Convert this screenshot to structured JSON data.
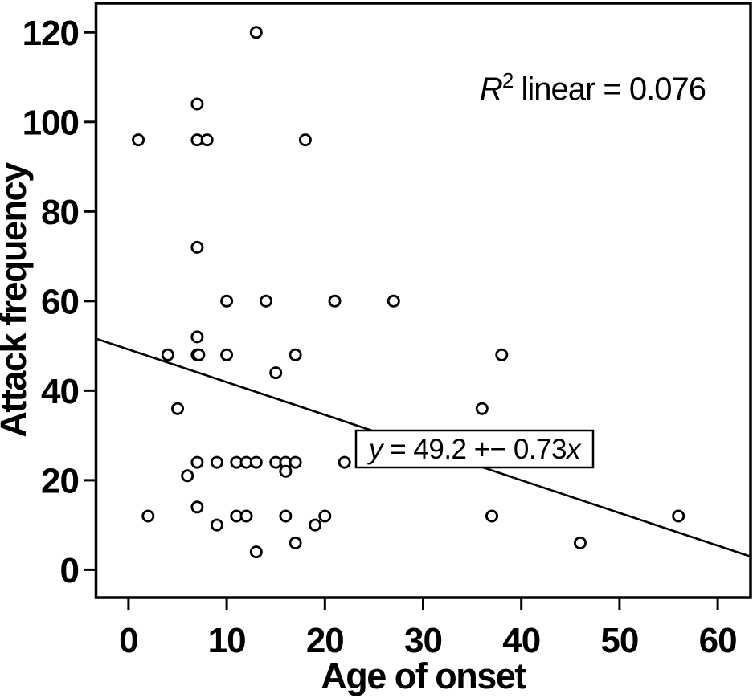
{
  "figure": {
    "background_color": "#ffffff",
    "ink_color": "#000000"
  },
  "chart_data": {
    "type": "scatter",
    "title": "",
    "xlabel": "Age of onset",
    "ylabel": "Attack frequency",
    "x_ticks": [
      0,
      10,
      20,
      30,
      40,
      50,
      60
    ],
    "y_ticks": [
      0,
      20,
      40,
      60,
      80,
      100,
      120
    ],
    "xlim": [
      -3.3,
      63.3
    ],
    "ylim": [
      -6.2,
      126.5
    ],
    "grid": false,
    "legend": null,
    "marker": "open-circle",
    "points": [
      [
        13,
        120
      ],
      [
        7,
        104
      ],
      [
        1,
        96
      ],
      [
        7,
        96
      ],
      [
        8,
        96
      ],
      [
        18,
        96
      ],
      [
        7,
        72
      ],
      [
        10,
        60
      ],
      [
        14,
        60
      ],
      [
        21,
        60
      ],
      [
        27,
        60
      ],
      [
        7,
        52
      ],
      [
        4,
        48
      ],
      [
        7,
        48
      ],
      [
        7,
        48
      ],
      [
        10,
        48
      ],
      [
        17,
        48
      ],
      [
        38,
        48
      ],
      [
        15,
        44
      ],
      [
        5,
        36
      ],
      [
        36,
        36
      ],
      [
        7,
        24
      ],
      [
        9,
        24
      ],
      [
        11,
        24
      ],
      [
        12,
        24
      ],
      [
        13,
        24
      ],
      [
        15,
        24
      ],
      [
        16,
        24
      ],
      [
        17,
        24
      ],
      [
        22,
        24
      ],
      [
        16,
        22
      ],
      [
        6,
        21
      ],
      [
        2,
        12
      ],
      [
        7,
        14
      ],
      [
        9,
        10
      ],
      [
        11,
        12
      ],
      [
        12,
        12
      ],
      [
        16,
        12
      ],
      [
        19,
        10
      ],
      [
        20,
        12
      ],
      [
        37,
        12
      ],
      [
        56,
        12
      ],
      [
        13,
        4
      ],
      [
        17,
        6
      ],
      [
        46,
        6
      ]
    ],
    "trendline": {
      "intercept": 49.2,
      "slope": -0.73,
      "label": "y = 49.2 +− 0.73x"
    },
    "annotation": "R² linear = 0.076"
  },
  "annotation_parts": {
    "r_var": "R",
    "sup": "2",
    "rest": " linear = 0.076"
  },
  "equation_parts": {
    "y_var": "y",
    "body": " = 49.2 +− 0.73",
    "x_var": "x"
  }
}
